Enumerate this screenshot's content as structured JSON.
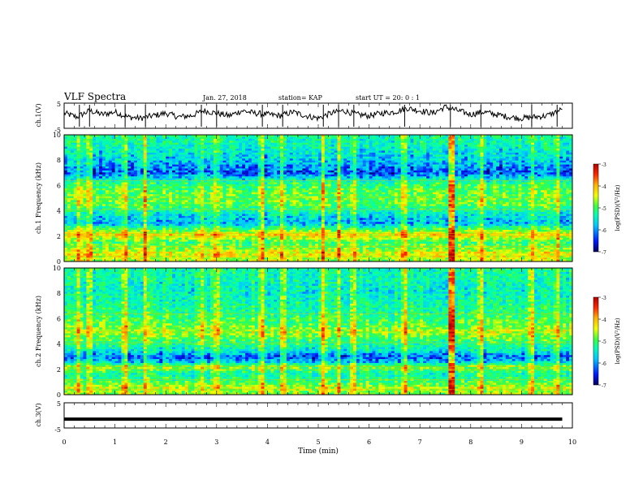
{
  "header": {
    "title": "VLF Spectra",
    "date": "Jan. 27, 2018",
    "station": "station= KAP",
    "start": "start  UT =   20: 0  : 1"
  },
  "colors": {
    "background": "#ffffff",
    "axes": "#000000",
    "trace": "#000000",
    "colormap": [
      "#00005a",
      "#0018ff",
      "#00c8ff",
      "#00ffb4",
      "#3cff3c",
      "#f0ff00",
      "#ffb400",
      "#ff2800",
      "#b40000"
    ]
  },
  "chart_data": [
    {
      "type": "line",
      "panel": "ch1-waveform",
      "ylabel": "ch.1(V)",
      "ylim": [
        -5,
        5
      ],
      "yticks": [
        "5",
        "-5"
      ],
      "xlim": [
        0,
        10
      ],
      "series": [
        {
          "x": [
            0,
            0.25,
            0.5,
            0.75,
            1.0,
            1.25,
            1.5,
            1.75,
            2.0,
            2.25,
            2.5,
            2.75,
            3.0,
            3.25,
            3.5,
            3.75,
            4.0,
            4.25,
            4.5,
            4.75,
            5.0,
            5.25,
            5.5,
            5.75,
            6.0,
            6.25,
            6.5,
            6.75,
            7.0,
            7.25,
            7.5,
            7.75,
            8.0,
            8.25,
            8.5,
            8.75,
            9.0,
            9.25,
            9.5,
            9.8
          ],
          "y": [
            1.0,
            -0.5,
            2.0,
            0.5,
            1.5,
            -0.5,
            -1.0,
            0.0,
            1.0,
            -0.5,
            0.0,
            2.0,
            1.0,
            0.0,
            2.0,
            1.0,
            0.5,
            0.0,
            1.5,
            0.0,
            -1.0,
            1.0,
            2.0,
            0.5,
            0.0,
            1.0,
            1.5,
            3.0,
            2.0,
            1.0,
            3.5,
            2.0,
            0.5,
            1.5,
            0.5,
            -0.5,
            -1.0,
            -0.5,
            0.0,
            2.5
          ]
        }
      ]
    },
    {
      "type": "heatmap",
      "panel": "ch1-spectrogram",
      "ylabel": "ch.1 Frequency (kHz)",
      "ylim": [
        0,
        10
      ],
      "yticks": [
        "0",
        "2",
        "4",
        "6",
        "8",
        "10"
      ],
      "xlim": [
        0,
        10
      ],
      "colorbar": {
        "label": "log(PSD)(V²/Hz)",
        "ticks": [
          "-3",
          "-4",
          "-5",
          "-6",
          "-7"
        ],
        "range": [
          -7,
          -3
        ]
      },
      "frequency_profile_khz": [
        [
          0.0,
          -4.8
        ],
        [
          0.6,
          -4.4
        ],
        [
          1.0,
          -4.8
        ],
        [
          1.5,
          -5.2
        ],
        [
          2.1,
          -4.3
        ],
        [
          2.6,
          -5.2
        ],
        [
          3.0,
          -6.0
        ],
        [
          3.6,
          -5.8
        ],
        [
          4.5,
          -5.0
        ],
        [
          5.5,
          -5.0
        ],
        [
          6.2,
          -5.3
        ],
        [
          7.0,
          -6.4
        ],
        [
          8.0,
          -5.9
        ],
        [
          9.0,
          -5.6
        ],
        [
          10.0,
          -5.4
        ]
      ],
      "broadband_bursts_min": [
        0.3,
        0.5,
        1.2,
        1.6,
        2.7,
        3.0,
        3.9,
        4.3,
        5.1,
        5.4,
        5.7,
        6.7,
        7.6,
        8.2,
        9.2,
        9.7
      ],
      "strongest_burst_min": 7.6
    },
    {
      "type": "heatmap",
      "panel": "ch2-spectrogram",
      "ylabel": "ch.2 Frequency (kHz)",
      "ylim": [
        0,
        10
      ],
      "yticks": [
        "0",
        "2",
        "4",
        "6",
        "8",
        "10"
      ],
      "xlim": [
        0,
        10
      ],
      "colorbar": {
        "label": "log(PSD)(V²/Hz)",
        "ticks": [
          "-3",
          "-4",
          "-5",
          "-6",
          "-7"
        ],
        "range": [
          -7,
          -3
        ]
      },
      "frequency_profile_khz": [
        [
          0.0,
          -4.9
        ],
        [
          0.6,
          -4.6
        ],
        [
          1.0,
          -5.1
        ],
        [
          1.6,
          -5.5
        ],
        [
          2.2,
          -4.8
        ],
        [
          2.6,
          -5.9
        ],
        [
          3.0,
          -6.3
        ],
        [
          3.5,
          -5.6
        ],
        [
          4.5,
          -5.0
        ],
        [
          5.0,
          -4.6
        ],
        [
          5.5,
          -5.0
        ],
        [
          6.5,
          -5.3
        ],
        [
          8.0,
          -5.6
        ],
        [
          10.0,
          -5.4
        ]
      ],
      "broadband_bursts_min": [
        0.3,
        0.5,
        1.2,
        1.6,
        2.7,
        3.0,
        3.9,
        4.3,
        5.1,
        5.4,
        5.7,
        6.7,
        7.6,
        8.2,
        9.2,
        9.7
      ],
      "strongest_burst_min": 7.6
    },
    {
      "type": "line",
      "panel": "ch3-waveform",
      "ylabel": "ch.3(V)",
      "ylim": [
        -5,
        5
      ],
      "yticks": [
        "5",
        "-5"
      ],
      "xlim": [
        0,
        10
      ],
      "series": [
        {
          "x": [
            0,
            9.8
          ],
          "y": [
            -1.5,
            -1.5
          ]
        }
      ]
    }
  ],
  "x_axis": {
    "label": "Time  (min)",
    "range": [
      0,
      10
    ],
    "ticks": [
      "0",
      "1",
      "2",
      "3",
      "4",
      "5",
      "6",
      "7",
      "8",
      "9",
      "10"
    ]
  }
}
